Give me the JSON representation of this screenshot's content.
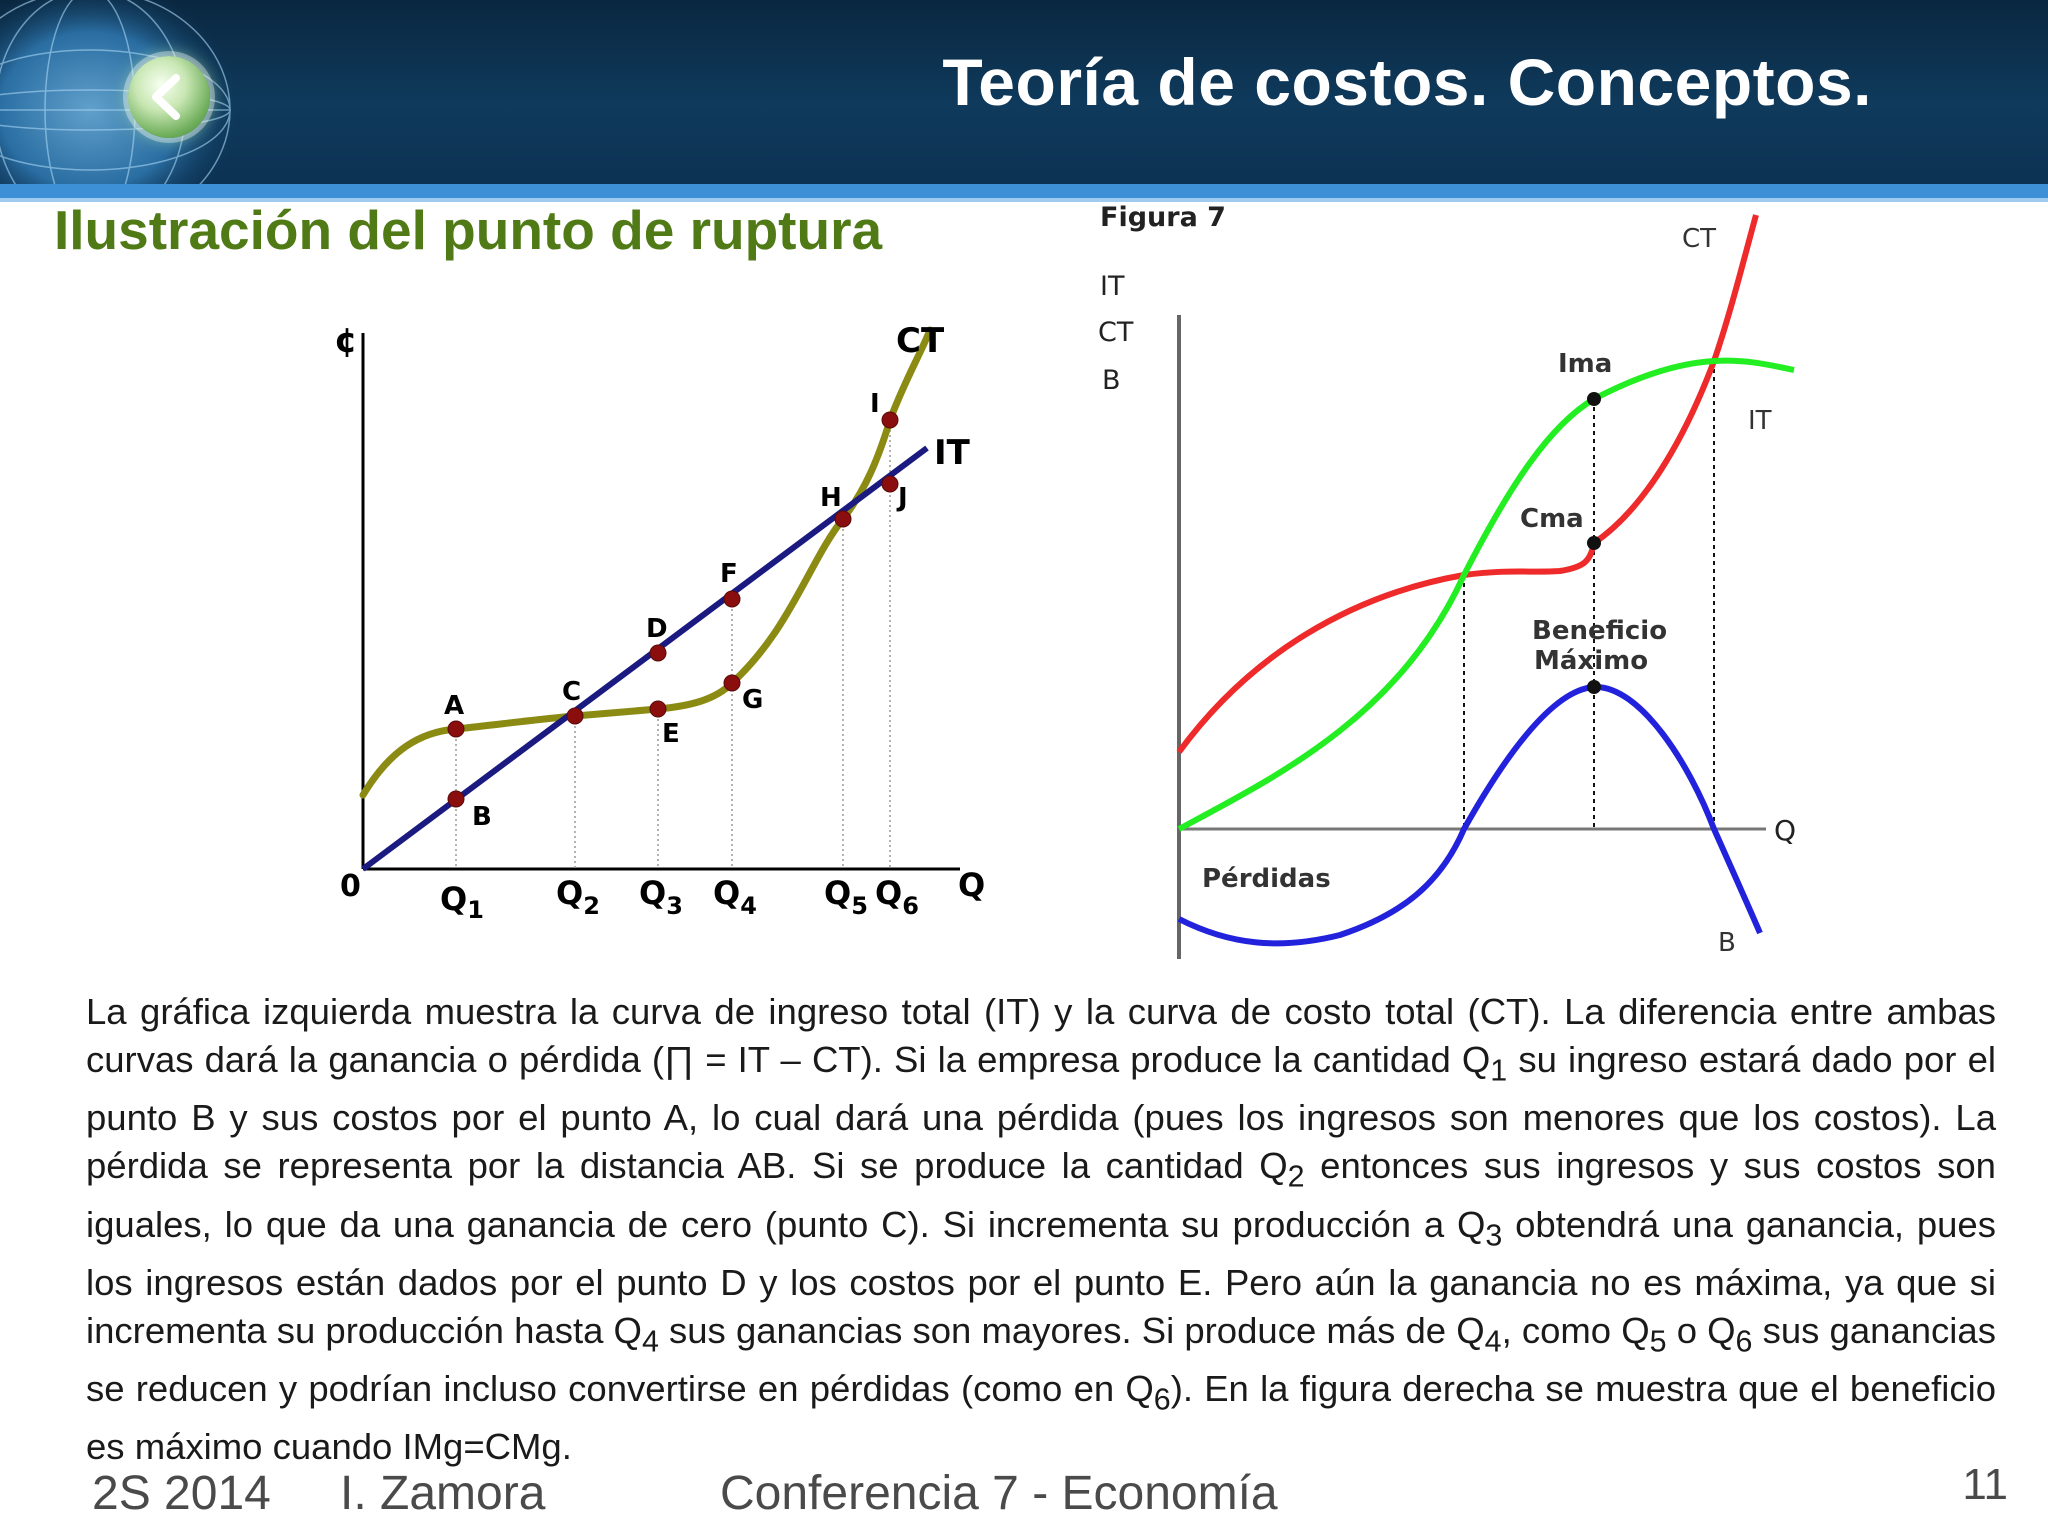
{
  "header": {
    "title": "Teoría de costos. Conceptos."
  },
  "subtitle": "Ilustración del punto de ruptura",
  "figure_left": {
    "y_axis_label": "¢",
    "x_axis_label": "Q",
    "origin_label": "0",
    "curve_labels": {
      "ct": "CT",
      "it": "IT"
    },
    "x_ticks": [
      {
        "name": "q1",
        "base": "Q",
        "sub": "1"
      },
      {
        "name": "q2",
        "base": "Q",
        "sub": "2"
      },
      {
        "name": "q3",
        "base": "Q",
        "sub": "3"
      },
      {
        "name": "q4",
        "base": "Q",
        "sub": "4"
      },
      {
        "name": "q5",
        "base": "Q",
        "sub": "5"
      },
      {
        "name": "q6",
        "base": "Q",
        "sub": "6"
      }
    ],
    "points": [
      "A",
      "B",
      "C",
      "D",
      "E",
      "F",
      "G",
      "H",
      "I",
      "J"
    ]
  },
  "figure_right": {
    "figure_title": "Figura 7",
    "y_axis_labels": [
      "IT",
      "CT",
      "B"
    ],
    "x_axis_label": "Q",
    "curve_labels": {
      "ct": "CT",
      "it": "IT",
      "b": "B"
    },
    "annotations": {
      "ima": "Ima",
      "cma": "Cma",
      "beneficio_1": "Beneficio",
      "beneficio_2": "Máximo",
      "perdidas": "Pérdidas"
    }
  },
  "body": {
    "p1": "La gráfica izquierda muestra la curva de ingreso total (IT) y la curva de costo total (CT). La diferencia entre ambas curvas dará la ganancia o pérdida (∏ = IT – CT). Si la empresa produce la cantidad Q",
    "s1": "1",
    "p2": " su ingreso estará dado por el punto B y sus costos por el punto A, lo cual dará una pérdida (pues los ingresos son menores que los costos). La pérdida se representa por la distancia AB. Si se produce la cantidad Q",
    "s2": "2",
    "p3": " entonces sus ingresos y sus costos son iguales, lo que da una ganancia de cero (punto C). Si incrementa su producción a Q",
    "s3": "3",
    "p4": " obtendrá una ganancia, pues los ingresos están dados por el punto D y los costos por el punto E. Pero aún la ganancia no es máxima, ya que si incrementa su producción hasta Q",
    "s4": "4",
    "p5": " sus ganancias son mayores. Si produce más de Q",
    "s5": "4",
    "p6": ", como Q",
    "s6": "5",
    "p7": " o Q",
    "s7": "6",
    "p8": " sus ganancias se reducen y podrían incluso convertirse en pérdidas (como en Q",
    "s8": "6",
    "p9": "). En la figura derecha se muestra que el beneficio es máximo cuando IMg=CMg."
  },
  "footer": {
    "term": "2S 2014",
    "author": "I. Zamora",
    "course": "Conferencia 7 - Economía",
    "page": "11"
  },
  "colors": {
    "header_bg": "#0f3a5c",
    "subtitle": "#4f7a16",
    "ct_left": "#8b8b14",
    "it_left": "#1a1a80",
    "point_left": "#8b0e0e",
    "ct_right": "#ee2a2a",
    "it_right": "#22ee22",
    "b_right": "#2222dd"
  }
}
